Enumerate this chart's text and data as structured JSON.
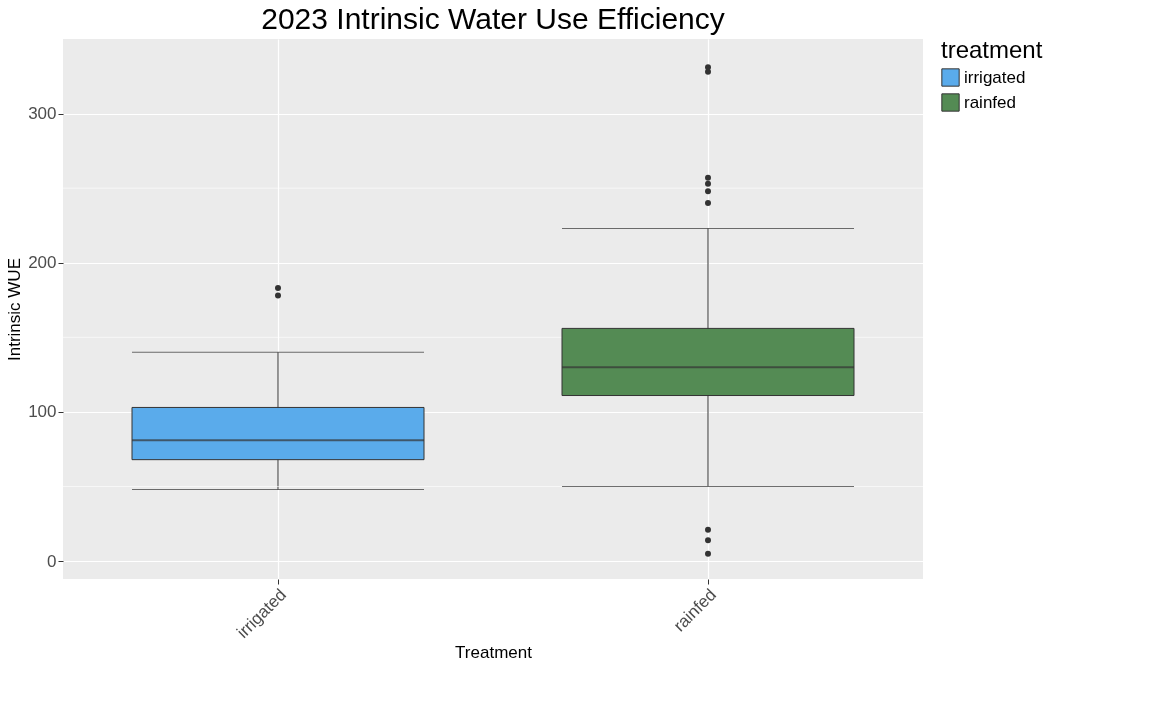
{
  "chart_data": {
    "type": "box",
    "title": "2023 Intrinsic Water Use Efficiency",
    "xlabel": "Treatment",
    "ylabel": "Intrinsic WUE",
    "legend_title": "treatment",
    "categories": [
      "irrigated",
      "rainfed"
    ],
    "series": [
      {
        "name": "irrigated",
        "color": "#5aabeb",
        "boxes": [
          {
            "low": 48,
            "q1": 68,
            "median": 81,
            "q3": 103,
            "high": 140,
            "outliers": [
              178,
              183
            ]
          },
          null
        ]
      },
      {
        "name": "rainfed",
        "color": "#548b54",
        "boxes": [
          null,
          {
            "low": 50,
            "q1": 111,
            "median": 130,
            "q3": 156,
            "high": 223,
            "outliers": [
              5,
              14,
              21,
              240,
              248,
              253,
              257,
              328,
              331
            ]
          }
        ]
      }
    ],
    "ylim": [
      -12,
      350
    ],
    "yticks": [
      0,
      100,
      200,
      300
    ],
    "grid": true,
    "legend": "right"
  }
}
